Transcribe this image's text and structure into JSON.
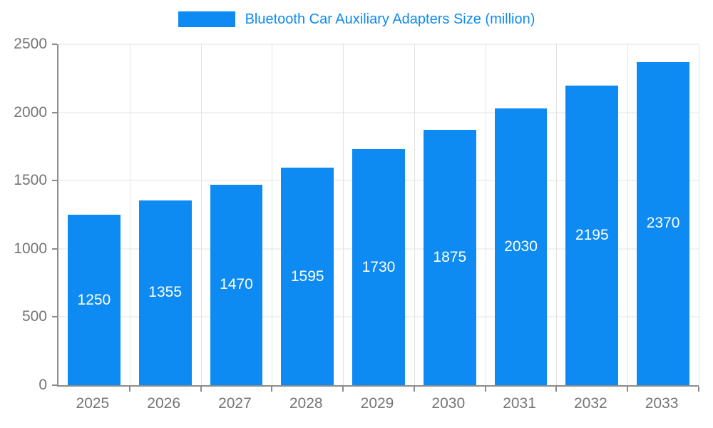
{
  "chart_data": {
    "type": "bar",
    "title": "Bluetooth Car Auxiliary Adapters Size (million)",
    "categories": [
      "2025",
      "2026",
      "2027",
      "2028",
      "2029",
      "2030",
      "2031",
      "2032",
      "2033"
    ],
    "values": [
      1250,
      1355,
      1470,
      1595,
      1730,
      1875,
      2030,
      2195,
      2370
    ],
    "xlabel": "",
    "ylabel": "",
    "ylim": [
      0,
      2500
    ],
    "yticks": [
      0,
      500,
      1000,
      1500,
      2000,
      2500
    ],
    "grid": true,
    "legend_position": "top",
    "value_labels": "inside-center"
  },
  "colors": {
    "bar": "#0d8bf2",
    "title": "#0d8bf2",
    "value_label": "#ffffff",
    "tick_label": "#757575",
    "gridline": "#e3e3e3",
    "axis_line": "#8c8c8c",
    "background": "#ffffff"
  }
}
